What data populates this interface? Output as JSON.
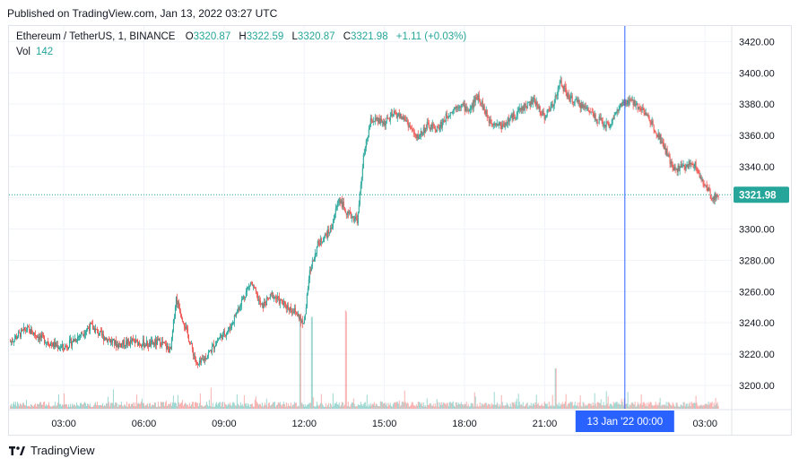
{
  "published": "Published on TradingView.com, Jan 13, 2022 03:27 UTC",
  "legend": {
    "symbol": "Ethereum / TetherUS, 1, BINANCE",
    "o_label": "O",
    "o": "3320.87",
    "h_label": "H",
    "h": "3322.59",
    "l_label": "L",
    "l": "3320.87",
    "c_label": "C",
    "c": "3321.98",
    "change": "+1.11 (+0.03%)",
    "vol_label": "Vol",
    "vol": "142"
  },
  "footer": {
    "brand": "TradingView"
  },
  "colors": {
    "up": "#26a69a",
    "down": "#ef5350",
    "badge": "#26a69a",
    "crosshair": "#2962ff",
    "grid": "#f0f3fa"
  },
  "chart_data": {
    "type": "candlestick",
    "symbol": "Ethereum / TetherUS, 1, BINANCE",
    "interval": "1",
    "ylim": [
      3185,
      3430
    ],
    "y_ticks": [
      "3420.00",
      "3400.00",
      "3380.00",
      "3360.00",
      "3340.00",
      "3320.00",
      "3300.00",
      "3280.00",
      "3260.00",
      "3240.00",
      "3220.00",
      "3200.00"
    ],
    "y_tick_values": [
      3420,
      3400,
      3380,
      3360,
      3340,
      3320,
      3300,
      3280,
      3260,
      3240,
      3220,
      3200
    ],
    "x_ticks": [
      "03:00",
      "06:00",
      "09:00",
      "12:00",
      "15:00",
      "18:00",
      "21:00",
      "03:00"
    ],
    "x_tick_hours": [
      3,
      6,
      9,
      12,
      15,
      18,
      21,
      27
    ],
    "x_range_hours": [
      0.95,
      28.0
    ],
    "crosshair_label": "13 Jan '22   00:00",
    "crosshair_hour": 24,
    "last_price": "3321.98",
    "last_price_value": 3321.98,
    "price_path": [
      [
        1.0,
        3228
      ],
      [
        1.6,
        3236
      ],
      [
        2.0,
        3232
      ],
      [
        2.6,
        3226
      ],
      [
        3.0,
        3224
      ],
      [
        3.6,
        3232
      ],
      [
        4.0,
        3238
      ],
      [
        4.4,
        3232
      ],
      [
        5.0,
        3226
      ],
      [
        5.6,
        3228
      ],
      [
        6.2,
        3226
      ],
      [
        6.6,
        3228
      ],
      [
        7.0,
        3222
      ],
      [
        7.2,
        3256
      ],
      [
        7.5,
        3240
      ],
      [
        8.0,
        3212
      ],
      [
        8.4,
        3220
      ],
      [
        8.8,
        3230
      ],
      [
        9.2,
        3236
      ],
      [
        9.6,
        3252
      ],
      [
        10.0,
        3266
      ],
      [
        10.4,
        3250
      ],
      [
        10.8,
        3258
      ],
      [
        11.2,
        3252
      ],
      [
        11.6,
        3248
      ],
      [
        12.0,
        3240
      ],
      [
        12.2,
        3272
      ],
      [
        12.5,
        3290
      ],
      [
        13.0,
        3300
      ],
      [
        13.3,
        3320
      ],
      [
        13.6,
        3310
      ],
      [
        14.0,
        3306
      ],
      [
        14.2,
        3344
      ],
      [
        14.5,
        3370
      ],
      [
        15.0,
        3368
      ],
      [
        15.4,
        3374
      ],
      [
        15.8,
        3370
      ],
      [
        16.2,
        3358
      ],
      [
        16.6,
        3366
      ],
      [
        17.0,
        3364
      ],
      [
        17.4,
        3374
      ],
      [
        17.8,
        3380
      ],
      [
        18.2,
        3376
      ],
      [
        18.5,
        3386
      ],
      [
        18.9,
        3370
      ],
      [
        19.4,
        3366
      ],
      [
        19.8,
        3372
      ],
      [
        20.2,
        3378
      ],
      [
        20.6,
        3382
      ],
      [
        21.0,
        3372
      ],
      [
        21.3,
        3380
      ],
      [
        21.6,
        3394
      ],
      [
        21.9,
        3384
      ],
      [
        22.3,
        3380
      ],
      [
        22.7,
        3376
      ],
      [
        23.0,
        3370
      ],
      [
        23.4,
        3366
      ],
      [
        23.8,
        3378
      ],
      [
        24.2,
        3382
      ],
      [
        24.6,
        3378
      ],
      [
        25.0,
        3368
      ],
      [
        25.4,
        3356
      ],
      [
        25.8,
        3338
      ],
      [
        26.2,
        3340
      ],
      [
        26.6,
        3342
      ],
      [
        26.9,
        3330
      ],
      [
        27.3,
        3320
      ],
      [
        27.5,
        3321.98
      ]
    ],
    "volume_spikes_hours": [
      11.85,
      12.3,
      13.55,
      21.4
    ],
    "volume_spikes_labels": [
      "large",
      "large",
      "large",
      "medium"
    ]
  }
}
